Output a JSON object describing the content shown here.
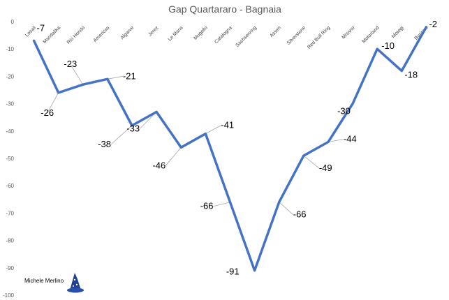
{
  "chart_data": {
    "type": "line",
    "title": "Gap Quartararo - Bagnaia",
    "xlabel": "",
    "ylabel": "",
    "ylim": [
      -100,
      0
    ],
    "yticks": [
      0,
      -10,
      -20,
      -30,
      -40,
      -50,
      -60,
      -70,
      -80,
      -90,
      -100
    ],
    "grid": false,
    "categories": [
      "Losail",
      "Mandalika",
      "Rio Hondo",
      "Americas",
      "Algarve",
      "Jerez",
      "Le Mans",
      "Mugello",
      "Catalogna",
      "Sachsenring",
      "Assen",
      "Silverstone",
      "Red Bull Ring",
      "Misano",
      "Motorland",
      "Motegi",
      "Buriram"
    ],
    "series": [
      {
        "name": "Gap Quartararo - Bagnaia",
        "values": [
          -7,
          -26,
          -23,
          -21,
          -38,
          -33,
          -46,
          -41,
          -66,
          -91,
          -66,
          -49,
          -44,
          -30,
          -10,
          -18,
          -2
        ],
        "color": "#4472c4"
      }
    ],
    "data_labels": [
      "-7",
      "-26",
      "-23",
      "-21",
      "-38",
      "-33",
      "-46",
      "-41",
      "-66",
      "-91",
      "-66",
      "-49",
      "-44",
      "-30",
      "-10",
      "-18",
      "-2"
    ]
  },
  "credit": {
    "author": "Michele Merlino",
    "icon": "wizard-hat-icon"
  }
}
